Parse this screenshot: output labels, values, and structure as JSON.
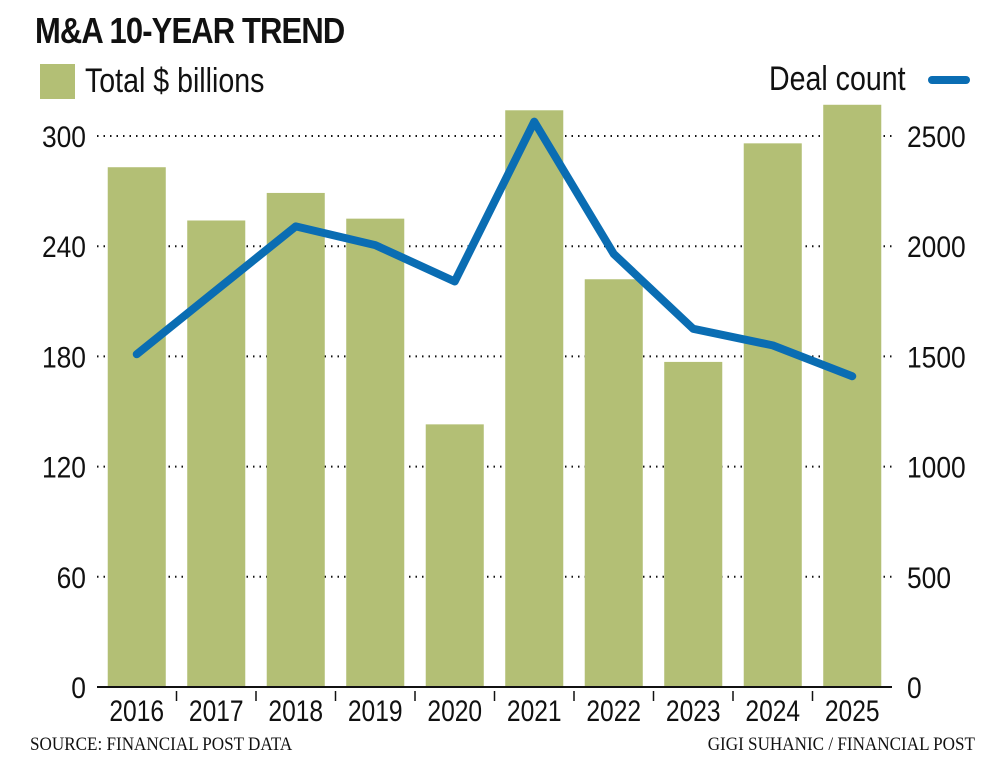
{
  "chart_data": {
    "type": "bar+line",
    "title": "M&A 10-YEAR TREND",
    "categories": [
      "2016",
      "2017",
      "2018",
      "2019",
      "2020",
      "2021",
      "2022",
      "2023",
      "2024",
      "2025"
    ],
    "series": [
      {
        "name": "Total $ billions",
        "type": "bar",
        "axis": "left",
        "color": "#b3bf75",
        "values": [
          283,
          254,
          269,
          255,
          143,
          314,
          222,
          177,
          296,
          317
        ]
      },
      {
        "name": "Deal count",
        "type": "line",
        "axis": "right",
        "color": "#0a6db3",
        "values": [
          1510,
          1800,
          2090,
          2005,
          1840,
          2565,
          1965,
          1625,
          1550,
          1410
        ]
      }
    ],
    "y_left": {
      "label": "Total $ billions",
      "ylim": [
        0,
        300
      ],
      "ticks": [
        0,
        60,
        120,
        180,
        240,
        300
      ]
    },
    "y_right": {
      "label": "Deal count",
      "ylim": [
        0,
        2500
      ],
      "ticks": [
        0,
        500,
        1000,
        1500,
        2000,
        2500
      ]
    },
    "grid": "horizontal dotted",
    "legend": {
      "bars": "top-left",
      "line": "top-right"
    }
  },
  "legend": {
    "bars_label": "Total $ billions",
    "line_label": "Deal count"
  },
  "footer": {
    "source": "SOURCE: FINANCIAL POST DATA",
    "credit": "GIGI SUHANIC  / FINANCIAL POST"
  }
}
